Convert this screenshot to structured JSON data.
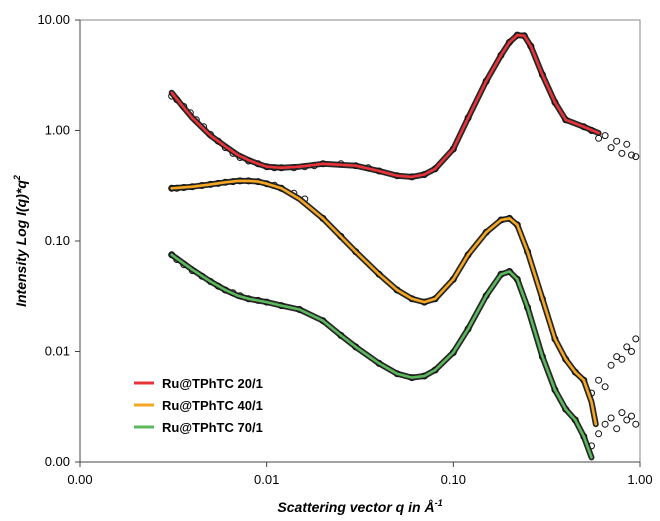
{
  "chart_data": {
    "type": "scatter",
    "title": "",
    "xlabel_parts": [
      "Scattering vector ",
      "q",
      " in Å",
      "-1"
    ],
    "ylabel_parts": [
      "Intensity Log ",
      "I(q)*q",
      "2"
    ],
    "x_scale": "log",
    "y_scale": "log",
    "xlim": [
      0.001,
      1.0
    ],
    "ylim": [
      0.001,
      10.0
    ],
    "x_ticks": [
      {
        "value": 0.001,
        "label": "0.00"
      },
      {
        "value": 0.01,
        "label": "0.01"
      },
      {
        "value": 0.1,
        "label": "0.10"
      },
      {
        "value": 1.0,
        "label": "1.00"
      }
    ],
    "y_ticks": [
      {
        "value": 0.001,
        "label": "0.00"
      },
      {
        "value": 0.01,
        "label": "0.01"
      },
      {
        "value": 0.1,
        "label": "0.10"
      },
      {
        "value": 1.0,
        "label": "1.00"
      },
      {
        "value": 10.0,
        "label": "10.00"
      }
    ],
    "grid": false,
    "legend_position": "bottom-left",
    "series": [
      {
        "name": "Ru@TPhTC 20/1",
        "color": "#e8333a",
        "fit_x": [
          0.0031,
          0.0035,
          0.004,
          0.005,
          0.006,
          0.007,
          0.008,
          0.009,
          0.01,
          0.012,
          0.015,
          0.02,
          0.03,
          0.04,
          0.05,
          0.06,
          0.07,
          0.08,
          0.1,
          0.12,
          0.15,
          0.18,
          0.2,
          0.22,
          0.24,
          0.26,
          0.3,
          0.35,
          0.4,
          0.5,
          0.6
        ],
        "fit_y": [
          2.2,
          1.7,
          1.3,
          0.9,
          0.72,
          0.6,
          0.54,
          0.5,
          0.47,
          0.46,
          0.47,
          0.5,
          0.48,
          0.43,
          0.39,
          0.38,
          0.4,
          0.45,
          0.68,
          1.3,
          2.8,
          4.8,
          6.3,
          7.3,
          7.2,
          5.8,
          3.2,
          1.8,
          1.25,
          1.08,
          0.95
        ],
        "data_x": [
          0.0031,
          0.0033,
          0.0036,
          0.0039,
          0.0042,
          0.0046,
          0.005,
          0.0055,
          0.006,
          0.0066,
          0.0072,
          0.008,
          0.009,
          0.01,
          0.011,
          0.012,
          0.014,
          0.016,
          0.018,
          0.02,
          0.025,
          0.03,
          0.035,
          0.04,
          0.05,
          0.06,
          0.07,
          0.08,
          0.1,
          0.12,
          0.15,
          0.18,
          0.2,
          0.22,
          0.24,
          0.26,
          0.3,
          0.35,
          0.4,
          0.5,
          0.55,
          0.6,
          0.65,
          0.7,
          0.75,
          0.8,
          0.85,
          0.9,
          0.95
        ],
        "data_y": [
          2.05,
          1.9,
          1.65,
          1.45,
          1.25,
          1.08,
          0.92,
          0.8,
          0.7,
          0.62,
          0.57,
          0.53,
          0.5,
          0.47,
          0.46,
          0.46,
          0.46,
          0.47,
          0.48,
          0.5,
          0.5,
          0.48,
          0.46,
          0.43,
          0.39,
          0.38,
          0.4,
          0.45,
          0.68,
          1.3,
          2.8,
          4.8,
          6.3,
          7.3,
          7.2,
          5.8,
          3.2,
          1.8,
          1.25,
          1.08,
          1.0,
          0.85,
          0.9,
          0.7,
          0.8,
          0.62,
          0.75,
          0.6,
          0.58
        ]
      },
      {
        "name": "Ru@TPhTC 40/1",
        "color": "#f5a623",
        "fit_x": [
          0.0031,
          0.004,
          0.005,
          0.006,
          0.007,
          0.008,
          0.009,
          0.01,
          0.012,
          0.015,
          0.02,
          0.03,
          0.04,
          0.05,
          0.06,
          0.07,
          0.08,
          0.1,
          0.12,
          0.15,
          0.18,
          0.2,
          0.22,
          0.25,
          0.3,
          0.35,
          0.4,
          0.45,
          0.5,
          0.55,
          0.58
        ],
        "fit_y": [
          0.3,
          0.31,
          0.325,
          0.34,
          0.35,
          0.35,
          0.345,
          0.33,
          0.3,
          0.24,
          0.16,
          0.08,
          0.05,
          0.036,
          0.03,
          0.028,
          0.03,
          0.045,
          0.075,
          0.12,
          0.155,
          0.16,
          0.14,
          0.08,
          0.03,
          0.013,
          0.0085,
          0.0065,
          0.0055,
          0.0035,
          0.0022
        ],
        "data_x": [
          0.0031,
          0.0033,
          0.0036,
          0.004,
          0.0045,
          0.005,
          0.0055,
          0.006,
          0.0066,
          0.0072,
          0.008,
          0.009,
          0.01,
          0.011,
          0.012,
          0.014,
          0.016,
          0.02,
          0.025,
          0.03,
          0.04,
          0.05,
          0.06,
          0.07,
          0.08,
          0.1,
          0.12,
          0.15,
          0.18,
          0.2,
          0.22,
          0.25,
          0.3,
          0.35,
          0.4,
          0.45,
          0.5,
          0.55,
          0.6,
          0.65,
          0.7,
          0.75,
          0.8,
          0.85,
          0.9,
          0.95
        ],
        "data_y": [
          0.3,
          0.3,
          0.305,
          0.31,
          0.318,
          0.325,
          0.332,
          0.34,
          0.345,
          0.35,
          0.35,
          0.345,
          0.33,
          0.32,
          0.3,
          0.27,
          0.24,
          0.16,
          0.11,
          0.08,
          0.05,
          0.036,
          0.03,
          0.028,
          0.03,
          0.045,
          0.075,
          0.12,
          0.155,
          0.16,
          0.14,
          0.08,
          0.03,
          0.013,
          0.0085,
          0.0065,
          0.0055,
          0.0042,
          0.0055,
          0.0048,
          0.0075,
          0.009,
          0.0085,
          0.011,
          0.01,
          0.013
        ]
      },
      {
        "name": "Ru@TPhTC 70/1",
        "color": "#5cb85c",
        "fit_x": [
          0.0031,
          0.004,
          0.005,
          0.006,
          0.007,
          0.008,
          0.01,
          0.012,
          0.015,
          0.02,
          0.025,
          0.03,
          0.04,
          0.05,
          0.06,
          0.07,
          0.08,
          0.1,
          0.12,
          0.15,
          0.18,
          0.2,
          0.22,
          0.25,
          0.3,
          0.35,
          0.4,
          0.45,
          0.5,
          0.55
        ],
        "fit_y": [
          0.075,
          0.055,
          0.043,
          0.036,
          0.032,
          0.03,
          0.028,
          0.026,
          0.024,
          0.019,
          0.014,
          0.011,
          0.0078,
          0.0063,
          0.0058,
          0.006,
          0.0068,
          0.0098,
          0.016,
          0.032,
          0.05,
          0.053,
          0.045,
          0.025,
          0.009,
          0.0045,
          0.003,
          0.0024,
          0.0017,
          0.0011
        ],
        "data_x": [
          0.0031,
          0.0033,
          0.0036,
          0.004,
          0.0045,
          0.005,
          0.0055,
          0.006,
          0.0066,
          0.0072,
          0.008,
          0.009,
          0.01,
          0.012,
          0.015,
          0.02,
          0.025,
          0.03,
          0.04,
          0.05,
          0.06,
          0.07,
          0.08,
          0.1,
          0.12,
          0.15,
          0.18,
          0.2,
          0.22,
          0.25,
          0.3,
          0.35,
          0.4,
          0.45,
          0.5,
          0.55,
          0.6,
          0.65,
          0.7,
          0.75,
          0.8,
          0.85,
          0.9,
          0.95
        ],
        "data_y": [
          0.075,
          0.068,
          0.061,
          0.054,
          0.048,
          0.043,
          0.039,
          0.036,
          0.034,
          0.032,
          0.03,
          0.029,
          0.028,
          0.026,
          0.024,
          0.019,
          0.014,
          0.011,
          0.0078,
          0.0063,
          0.0058,
          0.006,
          0.0068,
          0.0098,
          0.016,
          0.032,
          0.05,
          0.053,
          0.045,
          0.025,
          0.009,
          0.0045,
          0.003,
          0.0024,
          0.0017,
          0.0014,
          0.0018,
          0.0022,
          0.0025,
          0.002,
          0.0028,
          0.0024,
          0.0026,
          0.0022
        ]
      }
    ]
  }
}
